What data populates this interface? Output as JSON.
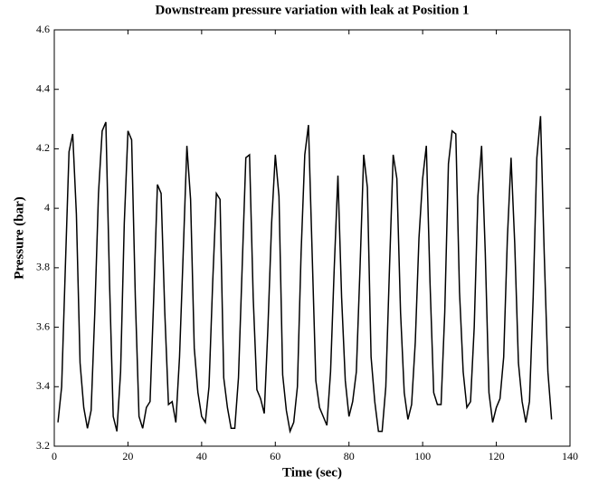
{
  "chart_data": {
    "type": "line",
    "title": "Downstream pressure variation with leak at Position 1",
    "x_label": "Time (sec)",
    "y_label": "Pressure (bar)",
    "xlim": [
      0,
      140
    ],
    "xticks": [
      0,
      20,
      40,
      60,
      80,
      100,
      120,
      140
    ],
    "ylim": [
      3.2,
      4.6
    ],
    "yticks": [
      3.2,
      3.4,
      3.6,
      3.8,
      4,
      4.2,
      4.4,
      4.6
    ],
    "x": [
      1,
      2,
      3,
      4,
      5,
      6,
      7,
      8,
      9,
      10,
      11,
      12,
      13,
      14,
      15,
      16,
      17,
      18,
      19,
      20,
      21,
      22,
      23,
      24,
      25,
      26,
      27,
      28,
      29,
      30,
      31,
      32,
      33,
      34,
      35,
      36,
      37,
      38,
      39,
      40,
      41,
      42,
      43,
      44,
      45,
      46,
      47,
      48,
      49,
      50,
      51,
      52,
      53,
      54,
      55,
      56,
      57,
      58,
      59,
      60,
      61,
      62,
      63,
      64,
      65,
      66,
      67,
      68,
      69,
      70,
      71,
      72,
      73,
      74,
      75,
      76,
      77,
      78,
      79,
      80,
      81,
      82,
      83,
      84,
      85,
      86,
      87,
      88,
      89,
      90,
      91,
      92,
      93,
      94,
      95,
      96,
      97,
      98,
      99,
      100,
      101,
      102,
      103,
      104,
      105,
      106,
      107,
      108,
      109,
      110,
      111,
      112,
      113,
      114,
      115,
      116,
      117,
      118,
      119,
      120,
      121,
      122,
      123,
      124,
      125,
      126,
      127,
      128,
      129,
      130,
      131,
      132,
      133,
      134,
      135
    ],
    "series": [
      {
        "color": "#000000",
        "values": [
          3.28,
          3.4,
          3.8,
          4.19,
          4.25,
          3.98,
          3.48,
          3.33,
          3.26,
          3.32,
          3.65,
          4.05,
          4.26,
          4.29,
          3.75,
          3.3,
          3.25,
          3.45,
          3.95,
          4.26,
          4.23,
          3.7,
          3.3,
          3.26,
          3.33,
          3.35,
          3.7,
          4.08,
          4.05,
          3.65,
          3.34,
          3.35,
          3.28,
          3.5,
          3.85,
          4.21,
          4.03,
          3.53,
          3.38,
          3.3,
          3.28,
          3.4,
          3.75,
          4.05,
          4.03,
          3.43,
          3.33,
          3.26,
          3.26,
          3.43,
          3.8,
          4.17,
          4.18,
          3.7,
          3.39,
          3.36,
          3.31,
          3.6,
          3.95,
          4.18,
          4.04,
          3.44,
          3.32,
          3.25,
          3.28,
          3.4,
          3.85,
          4.18,
          4.28,
          3.85,
          3.42,
          3.33,
          3.3,
          3.27,
          3.45,
          3.8,
          4.11,
          3.7,
          3.42,
          3.3,
          3.35,
          3.45,
          3.8,
          4.18,
          4.07,
          3.5,
          3.35,
          3.25,
          3.25,
          3.4,
          3.8,
          4.18,
          4.1,
          3.65,
          3.38,
          3.29,
          3.34,
          3.55,
          3.9,
          4.1,
          4.21,
          3.75,
          3.38,
          3.34,
          3.34,
          3.65,
          4.15,
          4.26,
          4.25,
          3.72,
          3.45,
          3.33,
          3.35,
          3.6,
          4.04,
          4.21,
          3.85,
          3.38,
          3.28,
          3.33,
          3.36,
          3.5,
          3.9,
          4.17,
          3.88,
          3.48,
          3.35,
          3.28,
          3.35,
          3.7,
          4.17,
          4.31,
          3.85,
          3.45,
          3.29
        ]
      }
    ]
  }
}
